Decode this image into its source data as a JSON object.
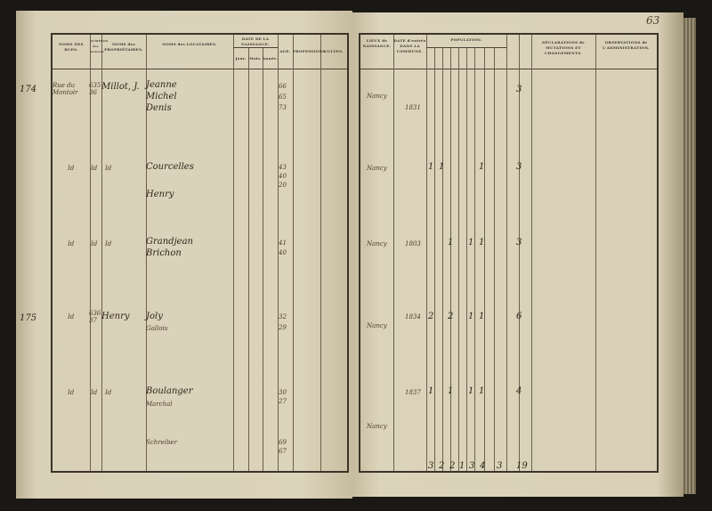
{
  "page_number": "63",
  "left_headers": {
    "rues": "NOMS DES RUES.",
    "numeros": "NUMÉROS des maisons",
    "proprietaires": "NOMS des PROPRIÉTAIRES.",
    "locataires": "NOMS des LOCATAIRES.",
    "date": "DATE DE LA NAISSANCE.",
    "jour": "Jour.",
    "mois": "Mois.",
    "annee": "Année.",
    "age": "AGE.",
    "professions": "PROFESSIONS.",
    "cultes": "CULTES."
  },
  "right_headers": {
    "lieux": "LIEUX de NAISSANCE.",
    "date_entree": "DATE d'entrée DANS LA COMMUNE.",
    "population": "POPULATION.",
    "declarations": "DÉCLARATIONS de MUTATIONS ET CHANGEMENTS.",
    "observations": "OBSERVATIONS de L'ADMINISTRATION."
  },
  "entries": [
    {
      "row_no": "174",
      "rue": "Rue du Montoir",
      "maison": "635 36",
      "proprietaire": "Millot, J.",
      "locataires": [
        "Jeanne",
        "Michel",
        "Denis"
      ],
      "ages": [
        "66",
        "65",
        "73"
      ],
      "lieu": "Nancy",
      "date": "1831",
      "total": "3"
    },
    {
      "row_no": "",
      "rue": "Id",
      "maison": "Id",
      "proprietaire": "Id",
      "locataires": [
        "Courcelles",
        "Henry"
      ],
      "ages": [
        "43",
        "40",
        "20"
      ],
      "lieu": "Nancy",
      "date": "",
      "pop": [
        "1",
        "1",
        "1"
      ],
      "total": "3"
    },
    {
      "row_no": "",
      "rue": "Id",
      "maison": "Id",
      "proprietaire": "Id",
      "locataires": [
        "Grandjean",
        "Brichon"
      ],
      "ages": [
        "41",
        "40"
      ],
      "lieu": "Nancy",
      "date": "1803",
      "pop": [
        "1",
        "1",
        "1"
      ],
      "total": "3"
    },
    {
      "row_no": "175",
      "rue": "Id",
      "maison": "636 37",
      "proprietaire": "Henry",
      "locataires": [
        "Joly",
        "Gallois"
      ],
      "ages": [
        "32",
        "29"
      ],
      "lieu": "Nancy",
      "date": "1834",
      "pop": [
        "2",
        "2",
        "1",
        "1"
      ],
      "total": "6"
    },
    {
      "row_no": "",
      "rue": "Id",
      "maison": "Id",
      "proprietaire": "Id",
      "locataires": [
        "Boulanger",
        "Marchal",
        "Schreiber"
      ],
      "ages": [
        "30",
        "27",
        "69",
        "67"
      ],
      "lieu": "Nancy",
      "date": "1837",
      "pop": [
        "1",
        "1",
        "1",
        "1"
      ],
      "total": "4"
    }
  ],
  "totals": [
    "3",
    "2",
    "2",
    "1",
    "3",
    "4",
    "3",
    "19"
  ]
}
